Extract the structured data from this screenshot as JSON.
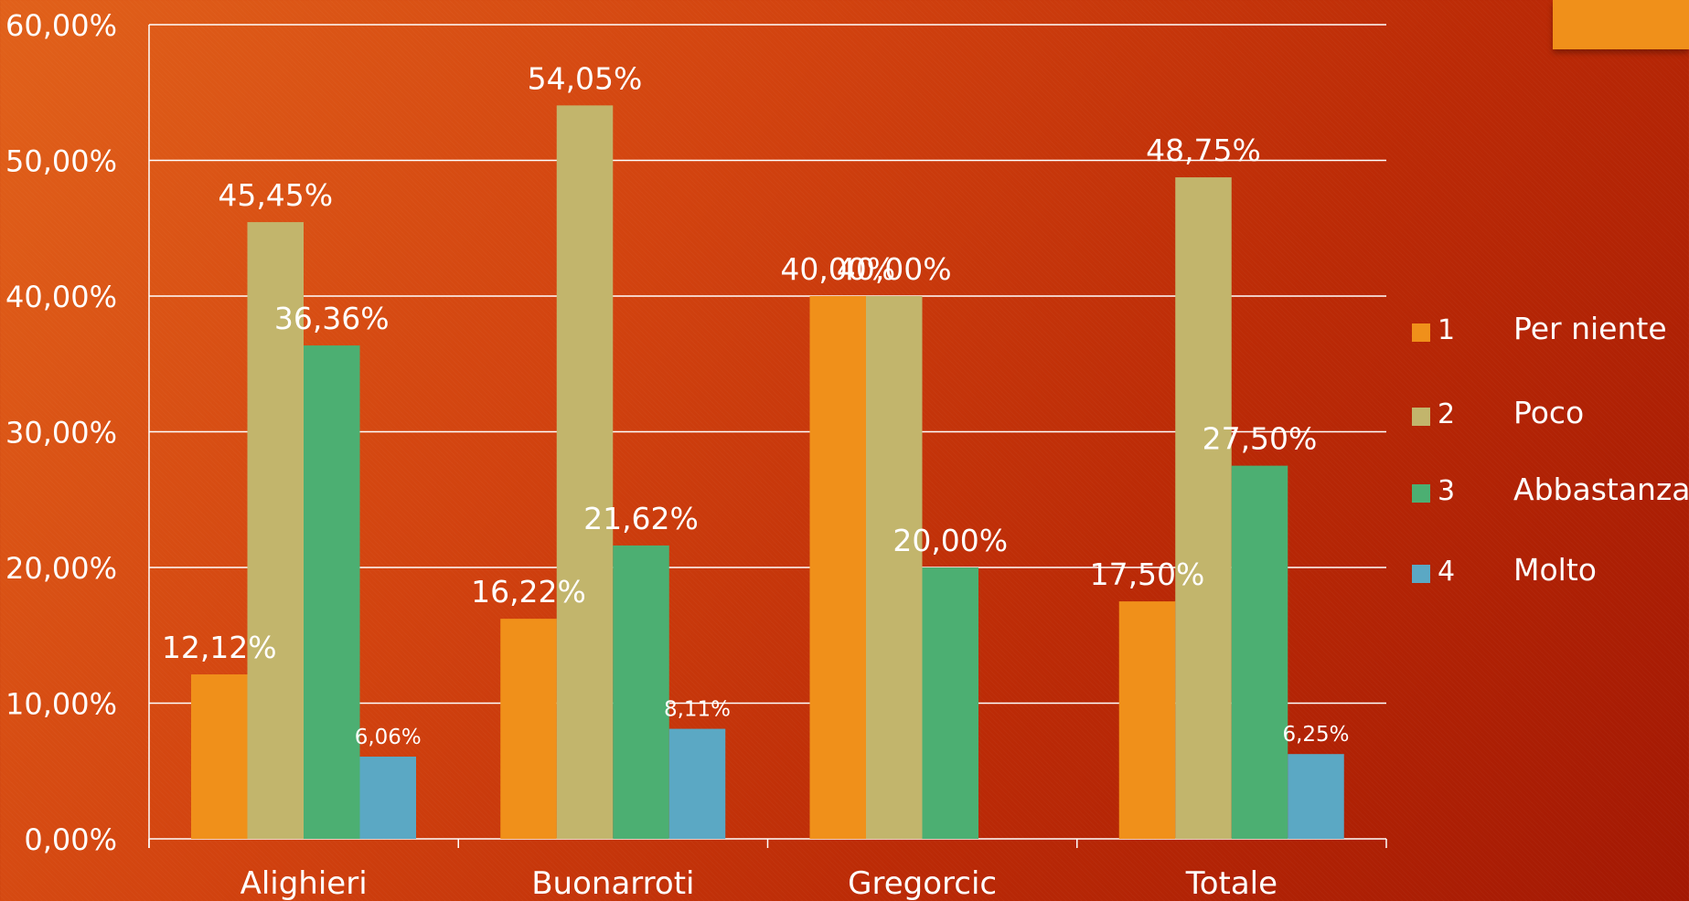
{
  "colors": {
    "accent": "#f0901a",
    "series": [
      "#f0901a",
      "#c2b56c",
      "#4caf72",
      "#5ba8c4"
    ],
    "grid": "#ffffff"
  },
  "chart_data": {
    "type": "bar",
    "title": "",
    "xlabel": "",
    "ylabel": "",
    "ylim": [
      0,
      60
    ],
    "y_ticks": [
      "0,00%",
      "10,00%",
      "20,00%",
      "30,00%",
      "40,00%",
      "50,00%",
      "60,00%"
    ],
    "y_tick_values": [
      0,
      10,
      20,
      30,
      40,
      50,
      60
    ],
    "grid": true,
    "legend_position": "right",
    "categories": [
      "Alighieri",
      "Buonarroti",
      "Gregorcic",
      "Totale"
    ],
    "series": [
      {
        "name": "1",
        "values": [
          12.12,
          16.22,
          40.0,
          17.5
        ],
        "labels": [
          "12,12%",
          "16,22%",
          "40,00%",
          "17,50%"
        ]
      },
      {
        "name": "2",
        "values": [
          45.45,
          54.05,
          40.0,
          48.75
        ],
        "labels": [
          "45,45%",
          "54,05%",
          "40,00%",
          "48,75%"
        ]
      },
      {
        "name": "3",
        "values": [
          36.36,
          21.62,
          20.0,
          27.5
        ],
        "labels": [
          "36,36%",
          "21,62%",
          "20,00%",
          "27,50%"
        ]
      },
      {
        "name": "4",
        "values": [
          6.06,
          8.11,
          null,
          6.25
        ],
        "labels": [
          "6,06%",
          "8,11%",
          "",
          "6,25%"
        ]
      }
    ]
  },
  "legend": {
    "items": [
      {
        "num": "1",
        "text": "Per niente"
      },
      {
        "num": "2",
        "text": "Poco"
      },
      {
        "num": "3",
        "text": "Abbastanza"
      },
      {
        "num": "4",
        "text": "Molto"
      }
    ]
  }
}
